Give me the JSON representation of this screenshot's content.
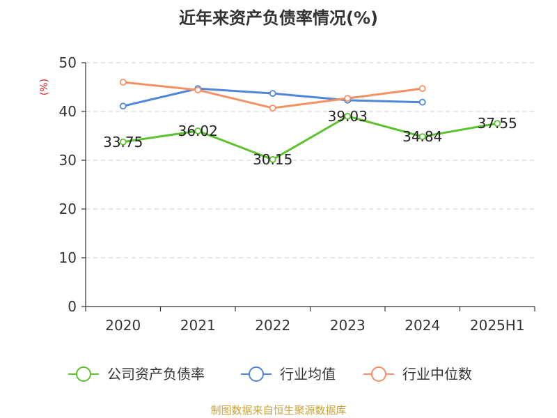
{
  "chart_data": {
    "type": "line",
    "title": "近年来资产负债率情况(%)",
    "ylabel": "(%)",
    "xlabel": "",
    "categories": [
      "2020",
      "2021",
      "2022",
      "2023",
      "2024",
      "2025H1"
    ],
    "ylim": [
      0,
      50
    ],
    "yticks": [
      0,
      10,
      20,
      30,
      40,
      50
    ],
    "grid": true,
    "legend_position": "bottom",
    "series": [
      {
        "name": "公司资产负债率",
        "color": "#5cc22e",
        "values": [
          33.75,
          36.02,
          30.15,
          39.03,
          34.84,
          37.55
        ],
        "labels": [
          "33.75",
          "36.02",
          "30.15",
          "39.03",
          "34.84",
          "37.55"
        ]
      },
      {
        "name": "行业均值",
        "color": "#4f86db",
        "values": [
          41.1,
          44.7,
          43.7,
          42.3,
          41.9,
          null
        ]
      },
      {
        "name": "行业中位数",
        "color": "#f59062",
        "values": [
          46.0,
          44.4,
          40.7,
          42.7,
          44.7,
          null
        ]
      }
    ]
  },
  "source": "制图数据来自恒生聚源数据库"
}
